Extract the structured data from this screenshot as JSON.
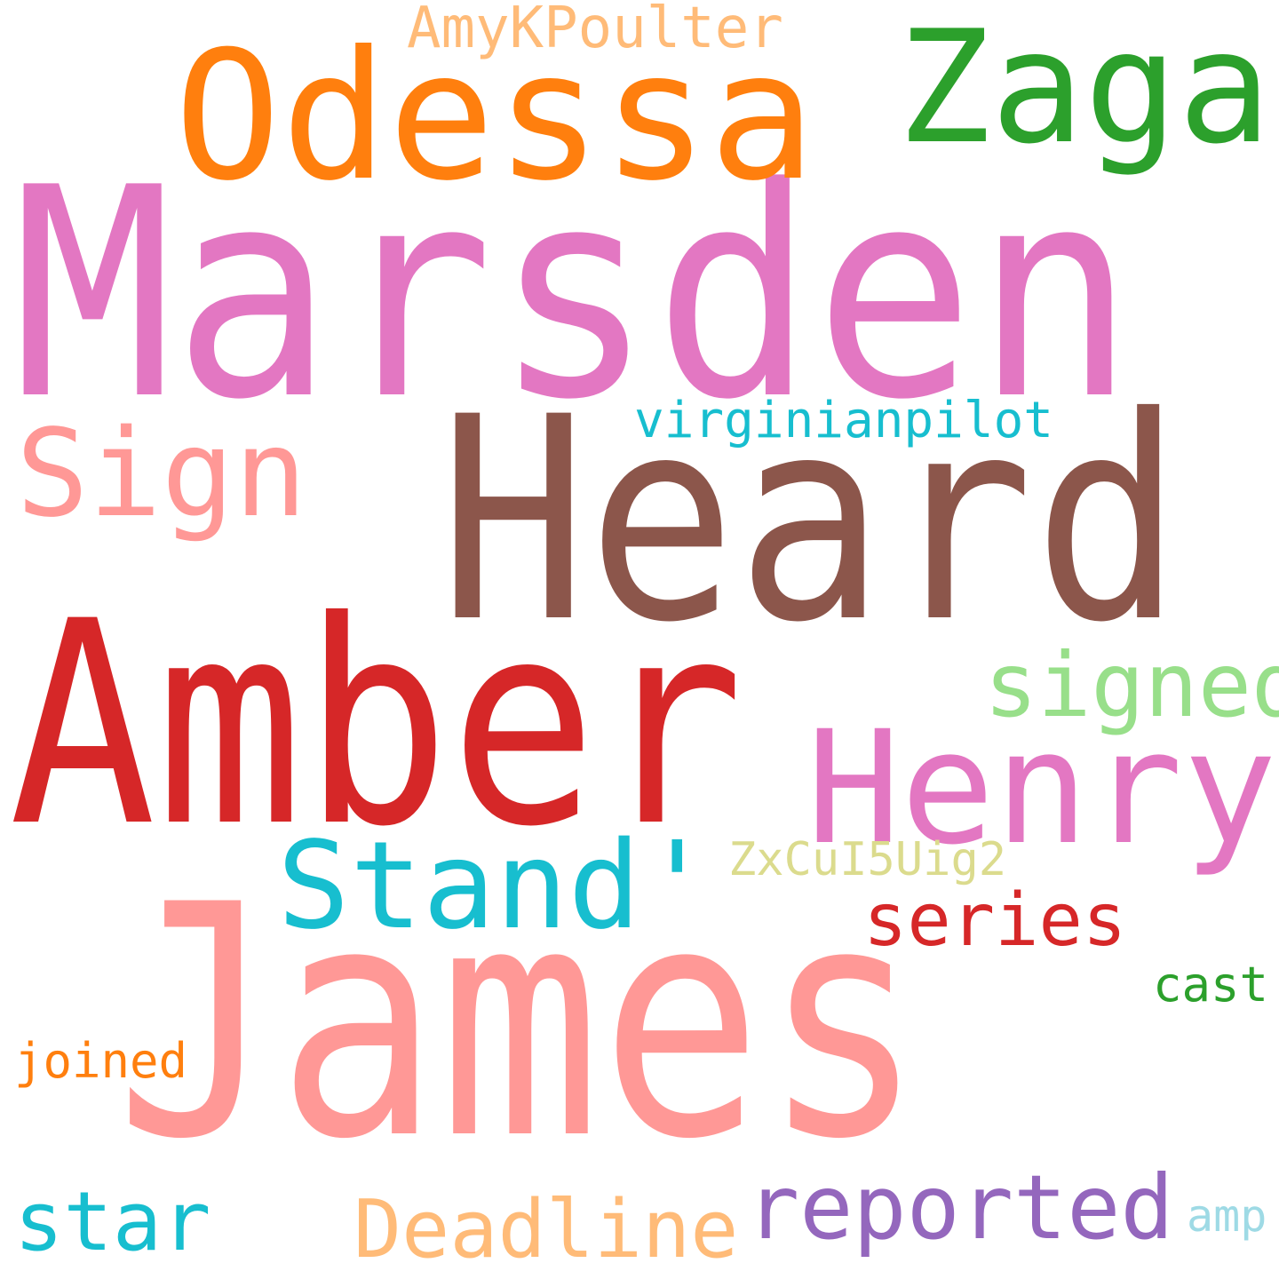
{
  "words": [
    {
      "id": "marsden",
      "text": "Marsden",
      "color": "#e377c2"
    },
    {
      "id": "james",
      "text": "James",
      "color": "#ff9896"
    },
    {
      "id": "amber",
      "text": "Amber",
      "color": "#d62728"
    },
    {
      "id": "heard",
      "text": "Heard",
      "color": "#8c564b"
    },
    {
      "id": "odessa",
      "text": "Odessa",
      "color": "#ff7f0e"
    },
    {
      "id": "zaga",
      "text": "Zaga",
      "color": "#2ca02c"
    },
    {
      "id": "henry",
      "text": "Henry",
      "color": "#e377c2"
    },
    {
      "id": "stand",
      "text": "Stand'",
      "color": "#17becf"
    },
    {
      "id": "sign",
      "text": "Sign",
      "color": "#ff9896"
    },
    {
      "id": "signed",
      "text": "signed",
      "color": "#98df8a"
    },
    {
      "id": "series",
      "text": "series",
      "color": "#d62728"
    },
    {
      "id": "reported",
      "text": "reported",
      "color": "#9467bd"
    },
    {
      "id": "deadline",
      "text": "Deadline",
      "color": "#ffbb78"
    },
    {
      "id": "star",
      "text": "star",
      "color": "#17becf"
    },
    {
      "id": "virginianpilot",
      "text": "virginianpilot",
      "color": "#17becf"
    },
    {
      "id": "amykpoulter",
      "text": "AmyKPoulter",
      "color": "#ffbb78"
    },
    {
      "id": "zxcui5uig2",
      "text": "ZxCuI5Uig2",
      "color": "#dbdb8d"
    },
    {
      "id": "joined",
      "text": "joined",
      "color": "#ff7f0e"
    },
    {
      "id": "cast",
      "text": "cast",
      "color": "#2ca02c"
    },
    {
      "id": "amp",
      "text": "amp",
      "color": "#9edae5"
    }
  ]
}
